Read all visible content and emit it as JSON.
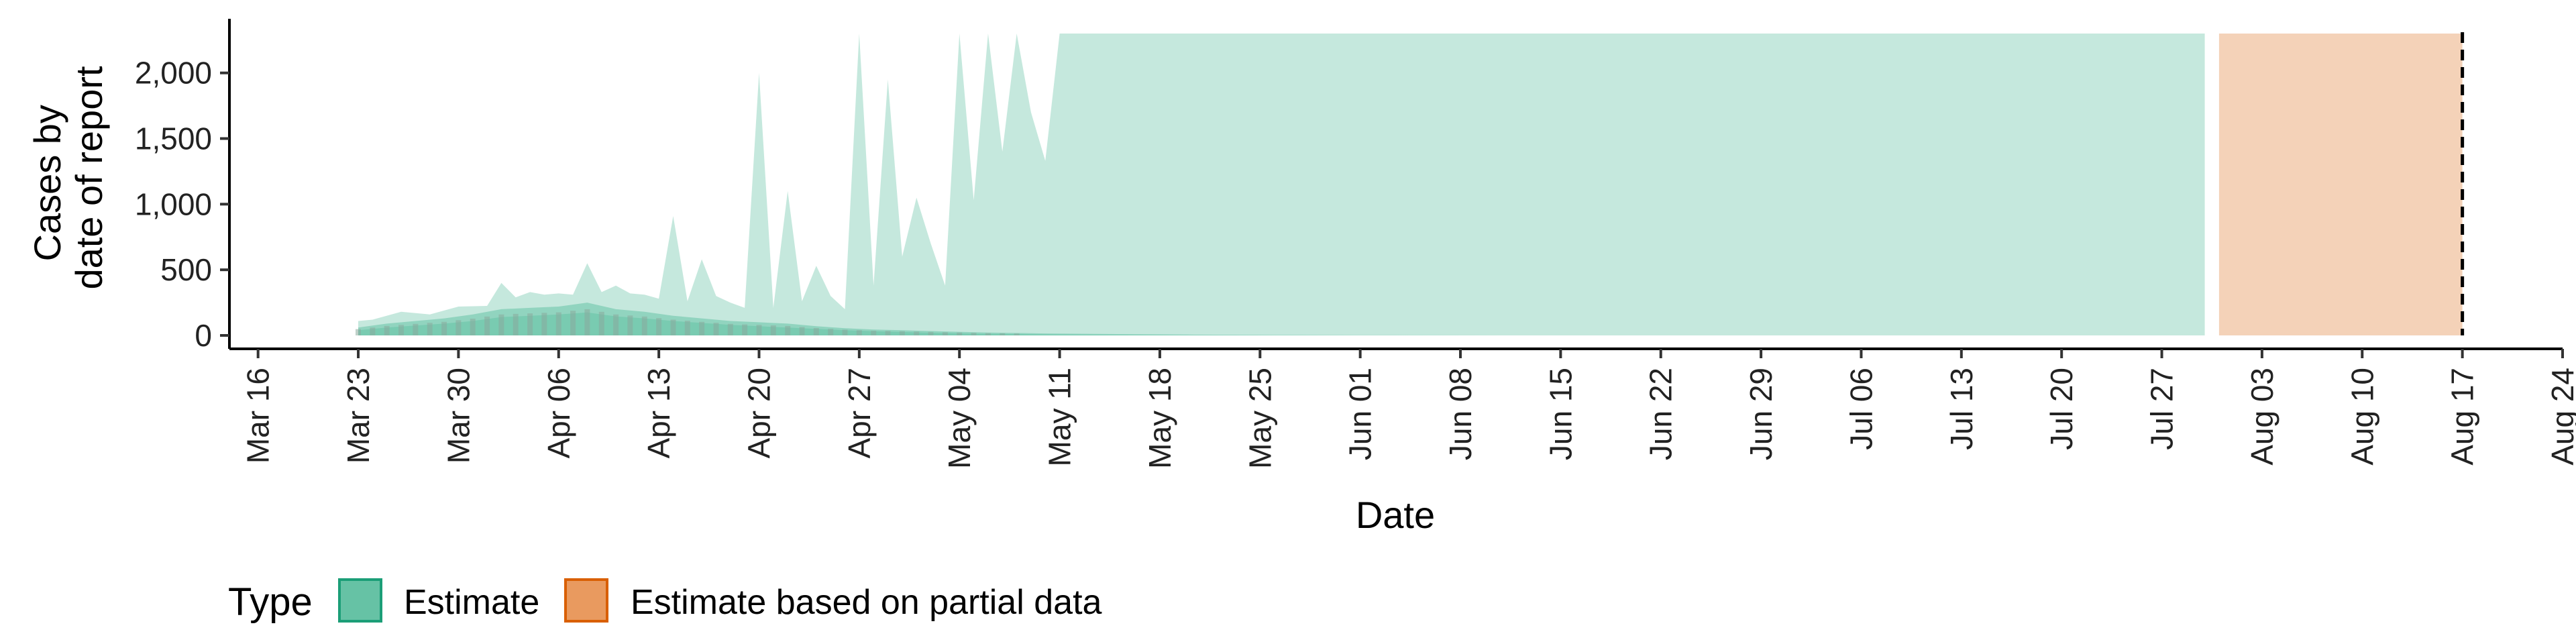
{
  "chart_data": {
    "type": "area",
    "xlabel": "Date",
    "ylabel": [
      "Cases by",
      "date of report"
    ],
    "ylim": [
      0,
      2300
    ],
    "xlim": [
      "2020-03-14",
      "2020-08-24"
    ],
    "y_ticks": [
      0,
      500,
      1000,
      1500,
      2000
    ],
    "y_tick_labels": [
      "0",
      "500",
      "1,000",
      "1,500",
      "2,000"
    ],
    "x_ticks": [
      "2020-03-16",
      "2020-03-23",
      "2020-03-30",
      "2020-04-06",
      "2020-04-13",
      "2020-04-20",
      "2020-04-27",
      "2020-05-04",
      "2020-05-11",
      "2020-05-18",
      "2020-05-25",
      "2020-06-01",
      "2020-06-08",
      "2020-06-15",
      "2020-06-22",
      "2020-06-29",
      "2020-07-06",
      "2020-07-13",
      "2020-07-20",
      "2020-07-27",
      "2020-08-03",
      "2020-08-10",
      "2020-08-17",
      "2020-08-24"
    ],
    "x_tick_labels": [
      "Mar 16",
      "Mar 23",
      "Mar 30",
      "Apr 06",
      "Apr 13",
      "Apr 20",
      "Apr 27",
      "May 04",
      "May 11",
      "May 18",
      "May 25",
      "Jun 01",
      "Jun 08",
      "Jun 15",
      "Jun 22",
      "Jun 29",
      "Jul 06",
      "Jul 13",
      "Jul 20",
      "Jul 27",
      "Aug 03",
      "Aug 10",
      "Aug 17",
      "Aug 24"
    ],
    "vline": "2020-08-17",
    "legend": {
      "title": "Type",
      "position": "bottom",
      "items": [
        {
          "label": "Estimate",
          "fill": "#66c2a5",
          "border": "#1b9e77"
        },
        {
          "label": "Estimate based on partial data",
          "fill": "#e99a5f",
          "border": "#d95f02"
        }
      ]
    },
    "colors": {
      "estimate": "#66c2a5",
      "partial": "#fc8d62"
    },
    "series": [
      {
        "name": "Estimate",
        "band": "90% interval",
        "x": [
          "2020-03-23",
          "2020-03-24",
          "2020-03-26",
          "2020-03-28",
          "2020-03-30",
          "2020-04-01",
          "2020-04-02",
          "2020-04-03",
          "2020-04-04",
          "2020-04-05",
          "2020-04-06",
          "2020-04-07",
          "2020-04-08",
          "2020-04-09",
          "2020-04-10",
          "2020-04-11",
          "2020-04-12",
          "2020-04-13",
          "2020-04-14",
          "2020-04-15",
          "2020-04-16",
          "2020-04-17",
          "2020-04-18",
          "2020-04-19",
          "2020-04-20",
          "2020-04-21",
          "2020-04-22",
          "2020-04-23",
          "2020-04-24",
          "2020-04-25",
          "2020-04-26",
          "2020-04-27",
          "2020-04-28",
          "2020-04-29",
          "2020-04-30",
          "2020-05-01",
          "2020-05-02",
          "2020-05-03",
          "2020-05-04",
          "2020-05-05",
          "2020-05-06",
          "2020-05-07",
          "2020-05-08",
          "2020-05-09",
          "2020-05-10",
          "2020-05-11",
          "2020-05-12",
          "2020-05-13",
          "2020-07-30"
        ],
        "upper": [
          110,
          120,
          180,
          160,
          220,
          225,
          400,
          290,
          330,
          310,
          320,
          310,
          550,
          330,
          380,
          320,
          310,
          280,
          910,
          260,
          580,
          300,
          250,
          210,
          2000,
          210,
          1100,
          260,
          530,
          300,
          200,
          2300,
          380,
          1950,
          600,
          1050,
          700,
          380,
          2300,
          1030,
          2300,
          1400,
          2300,
          1700,
          1330,
          2300,
          2300,
          2300,
          2300
        ],
        "lower": [
          0,
          0,
          0,
          0,
          0,
          0,
          0,
          0,
          0,
          0,
          0,
          0,
          0,
          0,
          0,
          0,
          0,
          0,
          0,
          0,
          0,
          0,
          0,
          0,
          0,
          0,
          0,
          0,
          0,
          0,
          0,
          0,
          0,
          0,
          0,
          0,
          0,
          0,
          0,
          0,
          0,
          0,
          0,
          0,
          0,
          0,
          0,
          0,
          0
        ]
      },
      {
        "name": "Estimate",
        "band": "50% interval",
        "x": [
          "2020-03-23",
          "2020-03-25",
          "2020-03-27",
          "2020-03-29",
          "2020-03-31",
          "2020-04-02",
          "2020-04-04",
          "2020-04-06",
          "2020-04-08",
          "2020-04-10",
          "2020-04-12",
          "2020-04-14",
          "2020-04-16",
          "2020-04-18",
          "2020-04-20",
          "2020-04-22",
          "2020-04-24",
          "2020-04-26",
          "2020-04-28",
          "2020-04-30",
          "2020-05-03",
          "2020-05-06",
          "2020-05-10",
          "2020-05-15",
          "2020-05-20",
          "2020-05-27",
          "2020-06-03",
          "2020-06-11"
        ],
        "upper": [
          60,
          90,
          110,
          130,
          160,
          200,
          210,
          220,
          250,
          200,
          180,
          150,
          130,
          110,
          100,
          90,
          70,
          55,
          45,
          40,
          30,
          22,
          15,
          10,
          6,
          3,
          1,
          0
        ],
        "lower": [
          0,
          0,
          0,
          0,
          0,
          0,
          0,
          0,
          0,
          0,
          0,
          0,
          0,
          0,
          0,
          0,
          0,
          0,
          0,
          0,
          0,
          0,
          0,
          0,
          0,
          0,
          0,
          0
        ]
      },
      {
        "name": "Estimate",
        "band": "20% interval",
        "x": [
          "2020-03-23",
          "2020-03-25",
          "2020-03-27",
          "2020-03-29",
          "2020-03-31",
          "2020-04-02",
          "2020-04-04",
          "2020-04-06",
          "2020-04-08",
          "2020-04-10",
          "2020-04-12",
          "2020-04-14",
          "2020-04-16",
          "2020-04-18",
          "2020-04-20",
          "2020-04-22",
          "2020-04-24",
          "2020-04-26",
          "2020-04-28",
          "2020-04-30",
          "2020-05-03",
          "2020-05-06",
          "2020-05-10",
          "2020-05-15",
          "2020-05-22"
        ],
        "upper": [
          40,
          60,
          75,
          90,
          110,
          140,
          150,
          160,
          175,
          145,
          130,
          110,
          95,
          80,
          70,
          60,
          50,
          40,
          32,
          26,
          18,
          12,
          7,
          3,
          0
        ],
        "lower": [
          0,
          0,
          0,
          0,
          0,
          0,
          0,
          0,
          0,
          0,
          0,
          0,
          0,
          0,
          0,
          0,
          0,
          0,
          0,
          0,
          0,
          0,
          0,
          0,
          0
        ]
      },
      {
        "name": "Estimate based on partial data",
        "band": "90% interval",
        "x": [
          "2020-07-31",
          "2020-08-17"
        ],
        "upper": [
          2300,
          2300
        ],
        "lower": [
          0,
          0
        ]
      }
    ]
  }
}
